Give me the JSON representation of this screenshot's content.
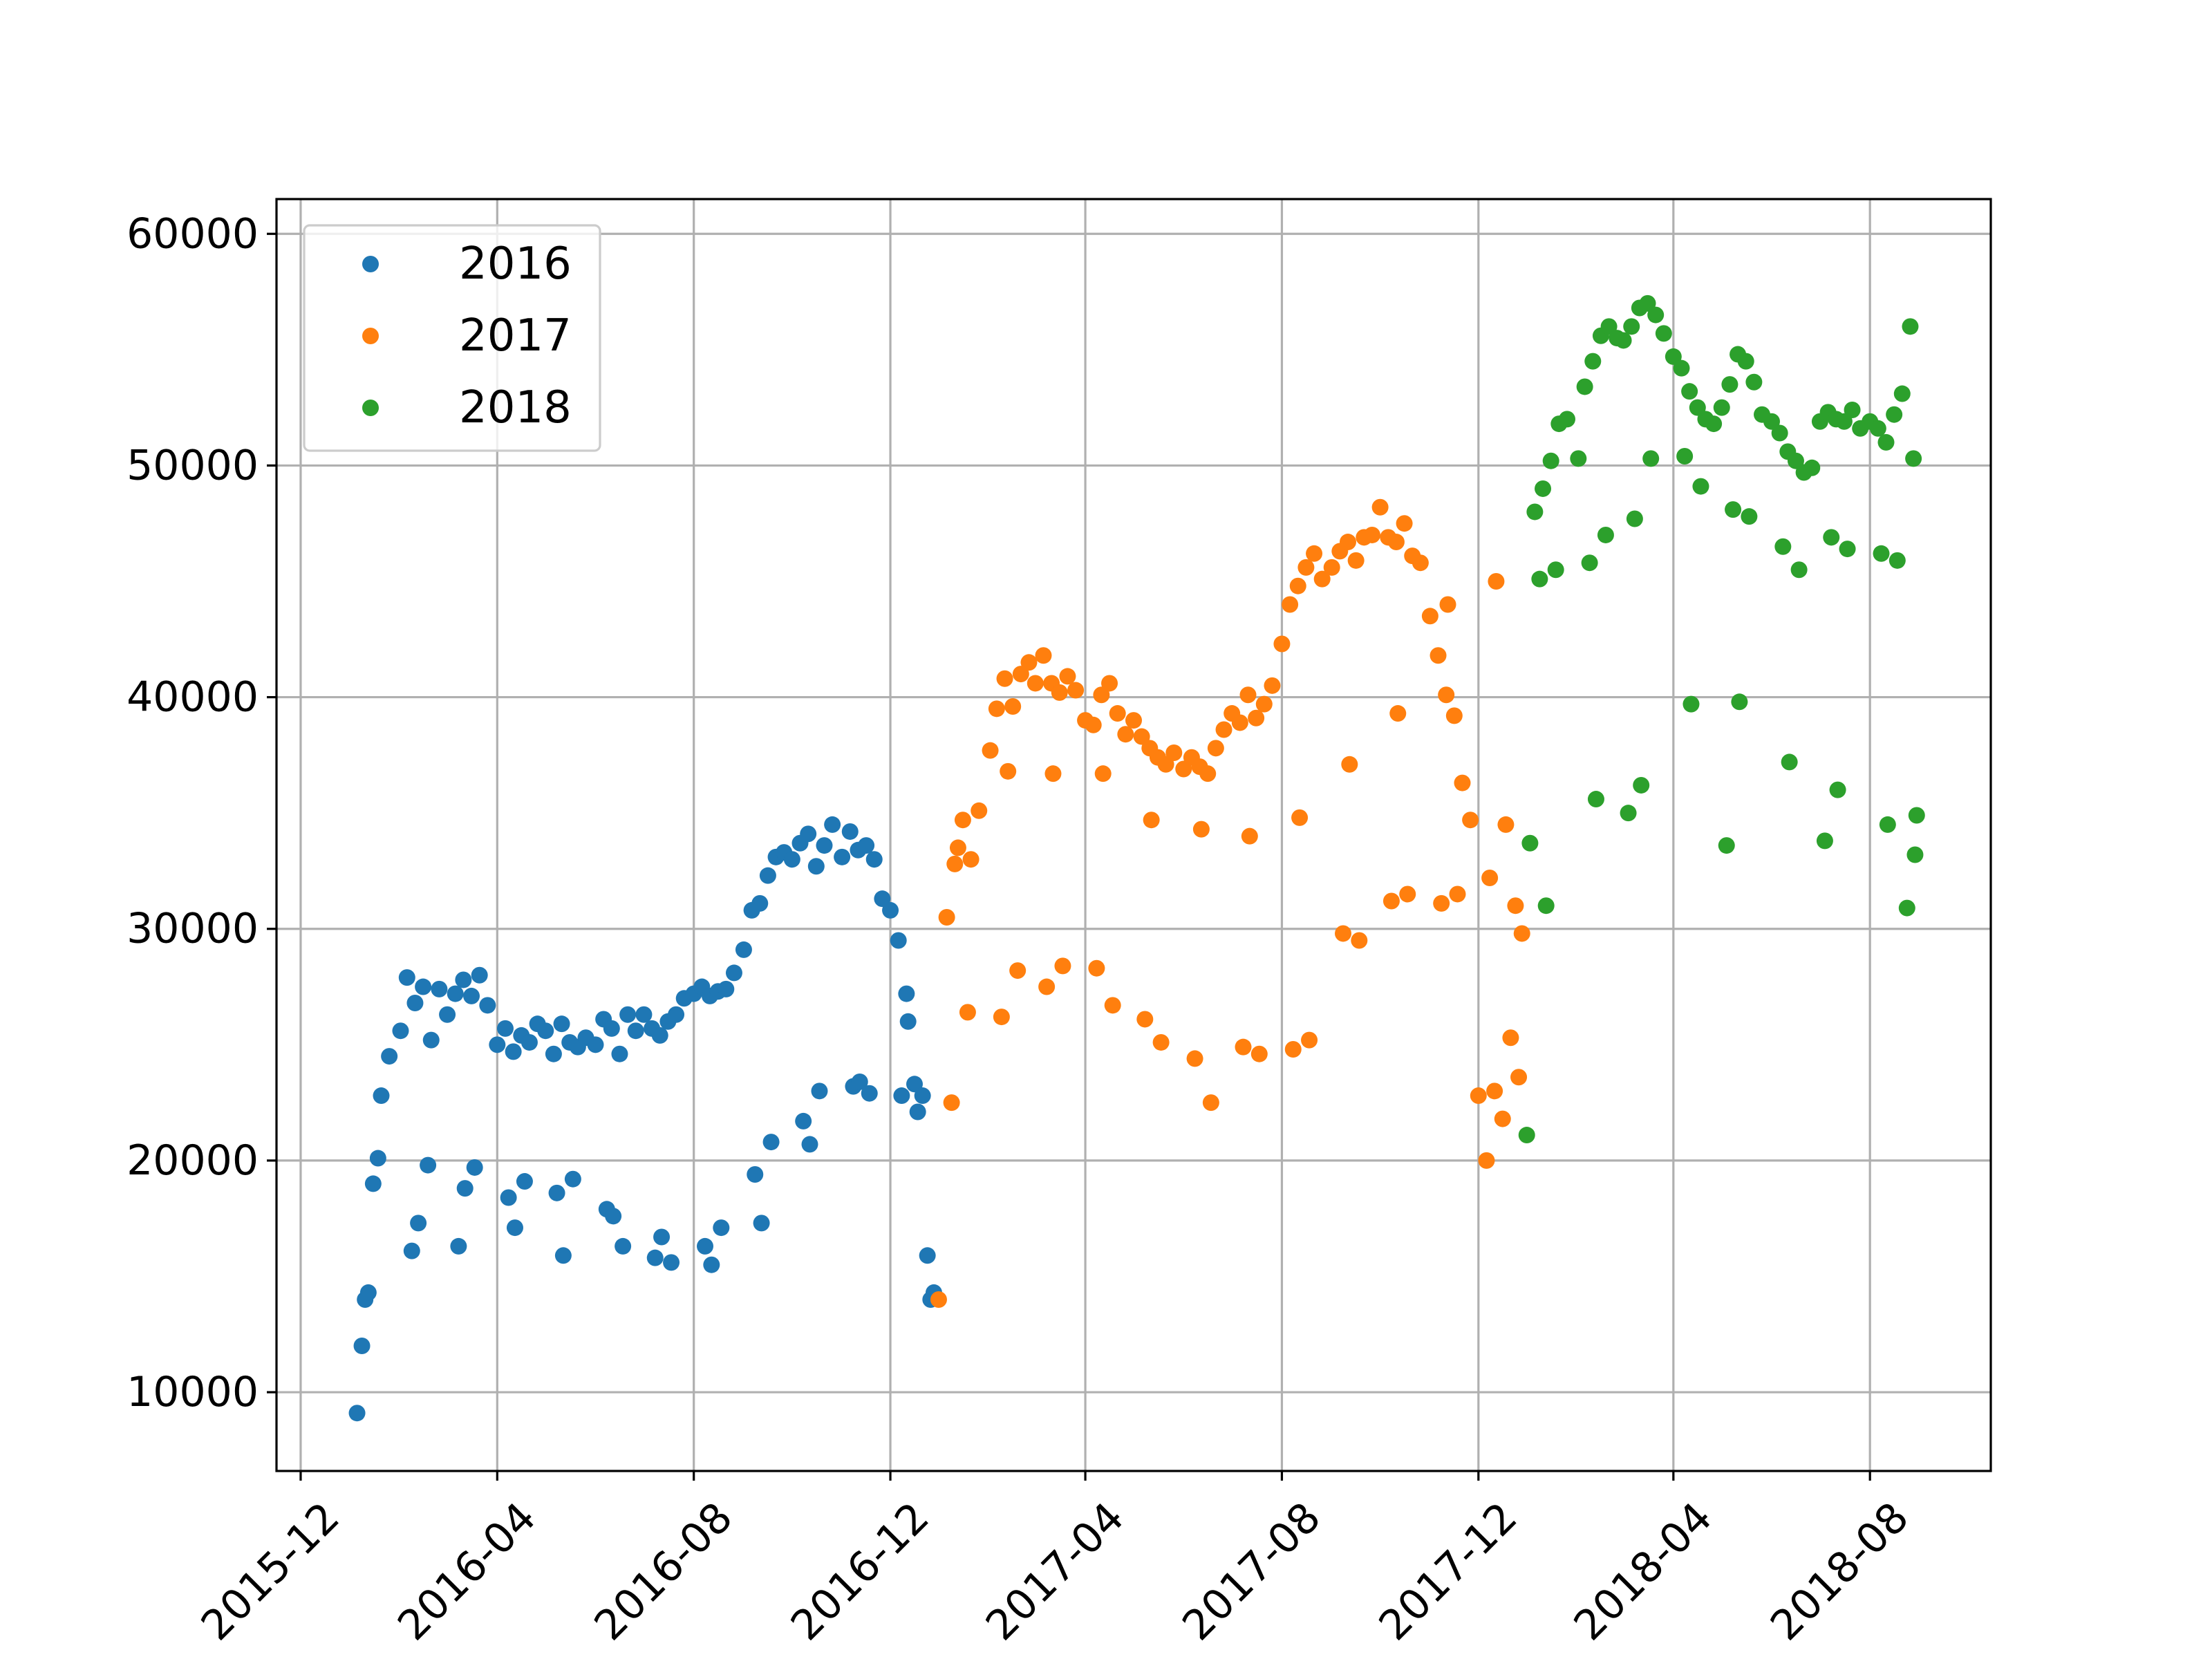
{
  "chart_data": {
    "type": "scatter",
    "title": "",
    "xlabel": "",
    "ylabel": "",
    "x_axis_type": "date",
    "xlim": [
      "2015-11-16",
      "2018-10-15"
    ],
    "ylim": [
      6600,
      61500
    ],
    "grid": true,
    "legend_position": "upper-left",
    "x_ticks": [
      "2015-12",
      "2016-04",
      "2016-08",
      "2016-12",
      "2017-04",
      "2017-08",
      "2017-12",
      "2018-04",
      "2018-08"
    ],
    "y_ticks": [
      10000,
      20000,
      30000,
      40000,
      50000,
      60000
    ],
    "y_tick_labels": [
      "10000",
      "20000",
      "30000",
      "40000",
      "50000",
      "60000"
    ],
    "series": [
      {
        "name": "2016",
        "color": "#1f77b4",
        "x": [
          "2016-01-05",
          "2016-01-10",
          "2016-01-15",
          "2016-01-20",
          "2016-01-25",
          "2016-02-01",
          "2016-02-05",
          "2016-02-10",
          "2016-02-15",
          "2016-02-20",
          "2016-02-25",
          "2016-03-01",
          "2016-03-06",
          "2016-03-11",
          "2016-03-16",
          "2016-03-21",
          "2016-03-26",
          "2016-04-01",
          "2016-04-06",
          "2016-04-11",
          "2016-04-16",
          "2016-04-21",
          "2016-04-26",
          "2016-05-01",
          "2016-05-06",
          "2016-05-11",
          "2016-05-16",
          "2016-05-21",
          "2016-05-26",
          "2016-06-01",
          "2016-06-06",
          "2016-06-11",
          "2016-06-16",
          "2016-06-21",
          "2016-06-26",
          "2016-07-01",
          "2016-07-06",
          "2016-07-11",
          "2016-07-16",
          "2016-07-21",
          "2016-07-26",
          "2016-08-01",
          "2016-08-06",
          "2016-08-11",
          "2016-08-16",
          "2016-08-21",
          "2016-08-26",
          "2016-09-01",
          "2016-09-06",
          "2016-09-11",
          "2016-09-16",
          "2016-09-21",
          "2016-09-26",
          "2016-10-01",
          "2016-10-06",
          "2016-10-11",
          "2016-10-16",
          "2016-10-21",
          "2016-10-26",
          "2016-11-01",
          "2016-11-06",
          "2016-11-11",
          "2016-11-16",
          "2016-11-21",
          "2016-11-26",
          "2016-12-01",
          "2016-12-06",
          "2016-12-11",
          "2016-12-16",
          "2016-12-21",
          "2016-12-26",
          "2016-01-08",
          "2016-01-18",
          "2016-02-08",
          "2016-02-18",
          "2016-03-08",
          "2016-03-18",
          "2016-04-08",
          "2016-04-18",
          "2016-05-08",
          "2016-05-18",
          "2016-06-08",
          "2016-06-18",
          "2016-07-08",
          "2016-07-18",
          "2016-08-08",
          "2016-08-18",
          "2016-09-08",
          "2016-09-18",
          "2016-10-08",
          "2016-10-18",
          "2016-11-08",
          "2016-11-18",
          "2016-12-08",
          "2016-12-18",
          "2016-01-12",
          "2016-02-12",
          "2016-03-12",
          "2016-04-12",
          "2016-05-12",
          "2016-06-12",
          "2016-07-12",
          "2016-08-12",
          "2016-09-12",
          "2016-10-12",
          "2016-11-12",
          "2016-12-12",
          "2016-12-24",
          "2016-12-28"
        ],
        "y": [
          9100,
          14000,
          19000,
          22800,
          24500,
          25600,
          27900,
          26800,
          27500,
          25200,
          27400,
          26300,
          27200,
          27800,
          27100,
          28000,
          26700,
          25000,
          25700,
          24700,
          25400,
          25100,
          25900,
          25600,
          24600,
          25900,
          25100,
          24900,
          25300,
          25000,
          26100,
          25700,
          24600,
          26300,
          25600,
          26300,
          25700,
          25400,
          26000,
          26300,
          27000,
          27200,
          27500,
          27100,
          27300,
          27400,
          28100,
          29100,
          30800,
          31100,
          32300,
          33100,
          33300,
          33000,
          33700,
          34100,
          32700,
          33600,
          34500,
          33100,
          34200,
          33400,
          33600,
          33000,
          31300,
          30800,
          29500,
          27200,
          23300,
          22800,
          14000,
          12000,
          20100,
          16100,
          19800,
          16300,
          19700,
          18400,
          19100,
          18600,
          19200,
          17900,
          16300,
          15800,
          15600,
          16300,
          17100,
          19400,
          20800,
          21700,
          23000,
          23200,
          22900,
          22800,
          22100,
          14300,
          17300,
          18800,
          17100,
          15900,
          17600,
          16700,
          15500,
          17300,
          20700,
          23400,
          26000,
          15900,
          14300
        ]
      },
      {
        "name": "2017",
        "color": "#ff7f0e",
        "x": [
          "2016-12-31",
          "2017-01-05",
          "2017-01-10",
          "2017-01-15",
          "2017-01-20",
          "2017-01-25",
          "2017-02-01",
          "2017-02-05",
          "2017-02-10",
          "2017-02-15",
          "2017-02-20",
          "2017-02-25",
          "2017-03-01",
          "2017-03-06",
          "2017-03-11",
          "2017-03-16",
          "2017-03-21",
          "2017-03-26",
          "2017-04-01",
          "2017-04-06",
          "2017-04-11",
          "2017-04-16",
          "2017-04-21",
          "2017-04-26",
          "2017-05-01",
          "2017-05-06",
          "2017-05-11",
          "2017-05-16",
          "2017-05-21",
          "2017-05-26",
          "2017-06-01",
          "2017-06-06",
          "2017-06-11",
          "2017-06-16",
          "2017-06-21",
          "2017-06-26",
          "2017-07-01",
          "2017-07-06",
          "2017-07-11",
          "2017-07-16",
          "2017-07-21",
          "2017-07-26",
          "2017-08-01",
          "2017-08-06",
          "2017-08-11",
          "2017-08-16",
          "2017-08-21",
          "2017-08-26",
          "2017-09-01",
          "2017-09-06",
          "2017-09-11",
          "2017-09-16",
          "2017-09-21",
          "2017-09-26",
          "2017-10-01",
          "2017-10-06",
          "2017-10-11",
          "2017-10-16",
          "2017-10-21",
          "2017-10-26",
          "2017-11-01",
          "2017-11-06",
          "2017-11-11",
          "2017-11-16",
          "2017-11-21",
          "2017-11-26",
          "2017-12-01",
          "2017-12-06",
          "2017-12-11",
          "2017-12-16",
          "2017-12-21",
          "2017-12-26",
          "2017-01-08",
          "2017-01-18",
          "2017-02-08",
          "2017-02-18",
          "2017-03-08",
          "2017-03-18",
          "2017-04-08",
          "2017-04-18",
          "2017-05-08",
          "2017-05-18",
          "2017-06-08",
          "2017-06-18",
          "2017-07-08",
          "2017-07-18",
          "2017-08-08",
          "2017-08-18",
          "2017-09-08",
          "2017-09-18",
          "2017-10-08",
          "2017-10-18",
          "2017-11-08",
          "2017-11-18",
          "2017-12-08",
          "2017-12-18",
          "2017-01-12",
          "2017-02-12",
          "2017-03-12",
          "2017-04-12",
          "2017-05-12",
          "2017-06-12",
          "2017-07-12",
          "2017-08-12",
          "2017-09-12",
          "2017-10-12",
          "2017-11-12",
          "2017-12-12",
          "2017-12-24",
          "2017-12-28"
        ],
        "y": [
          14000,
          30500,
          32800,
          34700,
          33000,
          35100,
          37700,
          39500,
          40800,
          39600,
          41000,
          41500,
          40600,
          41800,
          40600,
          40200,
          40900,
          40300,
          39000,
          38800,
          40100,
          40600,
          39300,
          38400,
          39000,
          38300,
          37800,
          37400,
          37100,
          37600,
          36900,
          37400,
          37000,
          36700,
          37800,
          38600,
          39300,
          38900,
          40100,
          39100,
          39700,
          40500,
          42300,
          44000,
          44800,
          45600,
          46200,
          45100,
          45600,
          46300,
          46700,
          45900,
          46900,
          47000,
          48200,
          46900,
          46700,
          47500,
          46100,
          45800,
          43500,
          41800,
          40100,
          39200,
          36300,
          34700,
          22800,
          20000,
          23000,
          21800,
          25300,
          23600,
          22500,
          26400,
          26200,
          28200,
          27500,
          28400,
          28300,
          26700,
          26100,
          25100,
          24400,
          22500,
          24900,
          24600,
          24800,
          25200,
          29800,
          29500,
          31200,
          31500,
          31100,
          31500,
          32200,
          34500,
          33500,
          36800,
          36700,
          36700,
          34700,
          34300,
          34000,
          34800,
          37100,
          39300,
          44000,
          45000,
          31000,
          29800
        ]
      },
      {
        "name": "2018",
        "color": "#2ca02c",
        "x": [
          "2017-12-31",
          "2018-01-05",
          "2018-01-10",
          "2018-01-15",
          "2018-01-20",
          "2018-01-25",
          "2018-02-01",
          "2018-02-05",
          "2018-02-10",
          "2018-02-15",
          "2018-02-20",
          "2018-02-25",
          "2018-03-01",
          "2018-03-06",
          "2018-03-11",
          "2018-03-16",
          "2018-03-21",
          "2018-03-26",
          "2018-04-01",
          "2018-04-06",
          "2018-04-11",
          "2018-04-16",
          "2018-04-21",
          "2018-04-26",
          "2018-05-01",
          "2018-05-06",
          "2018-05-11",
          "2018-05-16",
          "2018-05-21",
          "2018-05-26",
          "2018-06-01",
          "2018-06-06",
          "2018-06-11",
          "2018-06-16",
          "2018-06-21",
          "2018-06-26",
          "2018-07-01",
          "2018-07-06",
          "2018-07-11",
          "2018-07-16",
          "2018-07-21",
          "2018-07-26",
          "2018-08-01",
          "2018-08-06",
          "2018-08-11",
          "2018-08-16",
          "2018-08-21",
          "2018-08-26",
          "2018-01-08",
          "2018-01-18",
          "2018-02-08",
          "2018-02-18",
          "2018-03-08",
          "2018-03-18",
          "2018-04-08",
          "2018-04-18",
          "2018-05-08",
          "2018-05-18",
          "2018-06-08",
          "2018-06-18",
          "2018-07-08",
          "2018-07-18",
          "2018-08-08",
          "2018-08-18",
          "2018-08-28",
          "2018-01-12",
          "2018-02-12",
          "2018-03-12",
          "2018-04-12",
          "2018-05-12",
          "2018-06-12",
          "2018-07-12",
          "2018-08-12",
          "2018-08-24",
          "2018-08-29",
          "2018-01-02",
          "2018-03-04",
          "2018-05-04",
          "2018-07-04",
          "2018-08-30"
        ],
        "y": [
          21100,
          48000,
          49000,
          50200,
          51800,
          52000,
          50300,
          53400,
          54500,
          55600,
          56000,
          55500,
          55400,
          56000,
          56800,
          57000,
          56500,
          55700,
          54700,
          54200,
          53200,
          52500,
          52000,
          51800,
          52500,
          53500,
          54800,
          54500,
          53600,
          52200,
          51900,
          51400,
          50600,
          50200,
          49700,
          49900,
          51900,
          52300,
          52000,
          51900,
          52400,
          51600,
          51900,
          51600,
          51000,
          52200,
          53100,
          56000,
          45100,
          45500,
          45800,
          47000,
          47700,
          50300,
          50400,
          49100,
          48100,
          47800,
          46500,
          45500,
          46900,
          46400,
          46200,
          45900,
          50300,
          31000,
          35600,
          36200,
          39700,
          39800,
          37200,
          36000,
          34500,
          30900,
          33200,
          33700,
          35000,
          33600,
          33800,
          34900
        ]
      }
    ]
  }
}
